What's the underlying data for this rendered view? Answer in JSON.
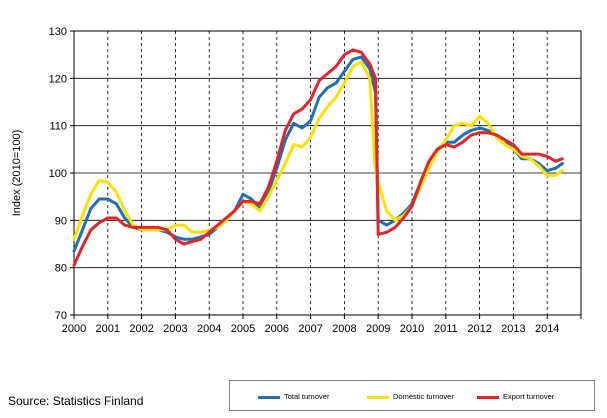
{
  "source_note": "Source: Statistics Finland",
  "colors": {
    "total": "#1f6fb5",
    "domestic": "#ffe000",
    "export": "#e0262b"
  },
  "chart_data": {
    "type": "line",
    "title": "",
    "xlabel": "",
    "ylabel": "Index (2010=100)",
    "xlim": [
      2000.0,
      2015.0
    ],
    "ylim": [
      70,
      130
    ],
    "yticks": [
      70,
      80,
      90,
      100,
      110,
      120,
      130
    ],
    "xticks": [
      "2000",
      "2001",
      "2002",
      "2003",
      "2004",
      "2005",
      "2006",
      "2007",
      "2008",
      "2009",
      "2010",
      "2011",
      "2012",
      "2013",
      "2014"
    ],
    "grid": true,
    "legend_position": "bottom-right",
    "series": [
      {
        "key": "total",
        "name": "Total turnover",
        "points": [
          [
            2000.0,
            83.5
          ],
          [
            2000.25,
            88
          ],
          [
            2000.5,
            92.5
          ],
          [
            2000.75,
            94.5
          ],
          [
            2001.0,
            94.5
          ],
          [
            2001.25,
            93.5
          ],
          [
            2001.5,
            90.5
          ],
          [
            2001.75,
            88.5
          ],
          [
            2002.0,
            88
          ],
          [
            2002.5,
            88
          ],
          [
            2002.75,
            87.5
          ],
          [
            2003.0,
            86.5
          ],
          [
            2003.25,
            86
          ],
          [
            2003.5,
            86
          ],
          [
            2003.75,
            86.5
          ],
          [
            2004.0,
            87
          ],
          [
            2004.25,
            88.5
          ],
          [
            2004.5,
            90
          ],
          [
            2004.75,
            92
          ],
          [
            2005.0,
            95.5
          ],
          [
            2005.25,
            94.5
          ],
          [
            2005.5,
            92.5
          ],
          [
            2005.75,
            96
          ],
          [
            2006.0,
            101
          ],
          [
            2006.25,
            107
          ],
          [
            2006.5,
            110.5
          ],
          [
            2006.75,
            109.5
          ],
          [
            2007.0,
            111
          ],
          [
            2007.25,
            116
          ],
          [
            2007.5,
            118
          ],
          [
            2007.75,
            119
          ],
          [
            2008.0,
            121.5
          ],
          [
            2008.25,
            124
          ],
          [
            2008.5,
            124.5
          ],
          [
            2008.75,
            122
          ],
          [
            2008.92,
            117
          ],
          [
            2009.0,
            90
          ],
          [
            2009.25,
            89
          ],
          [
            2009.5,
            90
          ],
          [
            2009.75,
            91.5
          ],
          [
            2010.0,
            93.5
          ],
          [
            2010.25,
            98
          ],
          [
            2010.5,
            102
          ],
          [
            2010.75,
            105
          ],
          [
            2011.0,
            106.5
          ],
          [
            2011.25,
            106.5
          ],
          [
            2011.5,
            108
          ],
          [
            2011.75,
            109
          ],
          [
            2012.0,
            109.5
          ],
          [
            2012.25,
            109
          ],
          [
            2012.5,
            108
          ],
          [
            2012.75,
            107
          ],
          [
            2013.0,
            105
          ],
          [
            2013.25,
            103
          ],
          [
            2013.5,
            103
          ],
          [
            2013.75,
            102
          ],
          [
            2014.0,
            100.5
          ],
          [
            2014.25,
            101
          ],
          [
            2014.45,
            102
          ]
        ]
      },
      {
        "key": "domestic",
        "name": "Domestic turnover",
        "points": [
          [
            2000.0,
            86
          ],
          [
            2000.25,
            91
          ],
          [
            2000.5,
            95.5
          ],
          [
            2000.75,
            98.5
          ],
          [
            2001.0,
            98
          ],
          [
            2001.25,
            96
          ],
          [
            2001.5,
            92
          ],
          [
            2001.75,
            89
          ],
          [
            2002.0,
            88
          ],
          [
            2002.5,
            88
          ],
          [
            2002.75,
            88
          ],
          [
            2003.0,
            89
          ],
          [
            2003.25,
            89
          ],
          [
            2003.5,
            87.5
          ],
          [
            2003.75,
            87.5
          ],
          [
            2004.0,
            88
          ],
          [
            2004.25,
            88.5
          ],
          [
            2004.5,
            90
          ],
          [
            2004.75,
            92
          ],
          [
            2005.0,
            94
          ],
          [
            2005.25,
            93.5
          ],
          [
            2005.5,
            92
          ],
          [
            2005.75,
            95
          ],
          [
            2006.0,
            98.5
          ],
          [
            2006.25,
            102
          ],
          [
            2006.5,
            106
          ],
          [
            2006.75,
            105.5
          ],
          [
            2007.0,
            107.5
          ],
          [
            2007.25,
            111.5
          ],
          [
            2007.5,
            114
          ],
          [
            2007.75,
            116
          ],
          [
            2008.0,
            119
          ],
          [
            2008.25,
            122.5
          ],
          [
            2008.5,
            123.5
          ],
          [
            2008.75,
            120
          ],
          [
            2008.9,
            102
          ],
          [
            2009.0,
            98
          ],
          [
            2009.25,
            92
          ],
          [
            2009.5,
            90
          ],
          [
            2009.75,
            91
          ],
          [
            2010.0,
            93
          ],
          [
            2010.25,
            97
          ],
          [
            2010.5,
            101
          ],
          [
            2010.75,
            104.5
          ],
          [
            2011.0,
            107
          ],
          [
            2011.25,
            110
          ],
          [
            2011.5,
            110.5
          ],
          [
            2011.75,
            110
          ],
          [
            2012.0,
            112
          ],
          [
            2012.25,
            110.5
          ],
          [
            2012.5,
            107.5
          ],
          [
            2012.75,
            106
          ],
          [
            2013.0,
            105
          ],
          [
            2013.25,
            103.5
          ],
          [
            2013.5,
            103
          ],
          [
            2013.75,
            101.5
          ],
          [
            2014.0,
            99.5
          ],
          [
            2014.25,
            99.5
          ],
          [
            2014.45,
            100.5
          ]
        ]
      },
      {
        "key": "export",
        "name": "Export turnover",
        "points": [
          [
            2000.0,
            80.5
          ],
          [
            2000.25,
            84.5
          ],
          [
            2000.5,
            88
          ],
          [
            2000.75,
            89.5
          ],
          [
            2001.0,
            90.5
          ],
          [
            2001.25,
            90.5
          ],
          [
            2001.5,
            89
          ],
          [
            2001.75,
            88.5
          ],
          [
            2002.0,
            88.5
          ],
          [
            2002.5,
            88.5
          ],
          [
            2002.75,
            88
          ],
          [
            2003.0,
            86
          ],
          [
            2003.25,
            85
          ],
          [
            2003.5,
            85.5
          ],
          [
            2003.75,
            86
          ],
          [
            2004.0,
            87.5
          ],
          [
            2004.25,
            89
          ],
          [
            2004.5,
            90.5
          ],
          [
            2004.75,
            92
          ],
          [
            2005.0,
            94
          ],
          [
            2005.25,
            94
          ],
          [
            2005.5,
            93.5
          ],
          [
            2005.75,
            97
          ],
          [
            2006.0,
            102.5
          ],
          [
            2006.25,
            109
          ],
          [
            2006.5,
            112.5
          ],
          [
            2006.75,
            113.5
          ],
          [
            2007.0,
            115.5
          ],
          [
            2007.25,
            119.5
          ],
          [
            2007.5,
            121
          ],
          [
            2007.75,
            122.5
          ],
          [
            2008.0,
            125
          ],
          [
            2008.25,
            126
          ],
          [
            2008.5,
            125.5
          ],
          [
            2008.75,
            123
          ],
          [
            2008.92,
            120
          ],
          [
            2009.0,
            87
          ],
          [
            2009.25,
            87.5
          ],
          [
            2009.5,
            88.5
          ],
          [
            2009.75,
            90.5
          ],
          [
            2010.0,
            93
          ],
          [
            2010.25,
            98
          ],
          [
            2010.5,
            102.5
          ],
          [
            2010.75,
            105
          ],
          [
            2011.0,
            106
          ],
          [
            2011.25,
            105.5
          ],
          [
            2011.5,
            106.5
          ],
          [
            2011.75,
            108
          ],
          [
            2012.0,
            108.5
          ],
          [
            2012.25,
            108.5
          ],
          [
            2012.5,
            108
          ],
          [
            2012.75,
            107
          ],
          [
            2013.0,
            106
          ],
          [
            2013.25,
            104
          ],
          [
            2013.5,
            104
          ],
          [
            2013.75,
            104
          ],
          [
            2014.0,
            103.5
          ],
          [
            2014.25,
            102.5
          ],
          [
            2014.45,
            103
          ]
        ]
      }
    ]
  }
}
